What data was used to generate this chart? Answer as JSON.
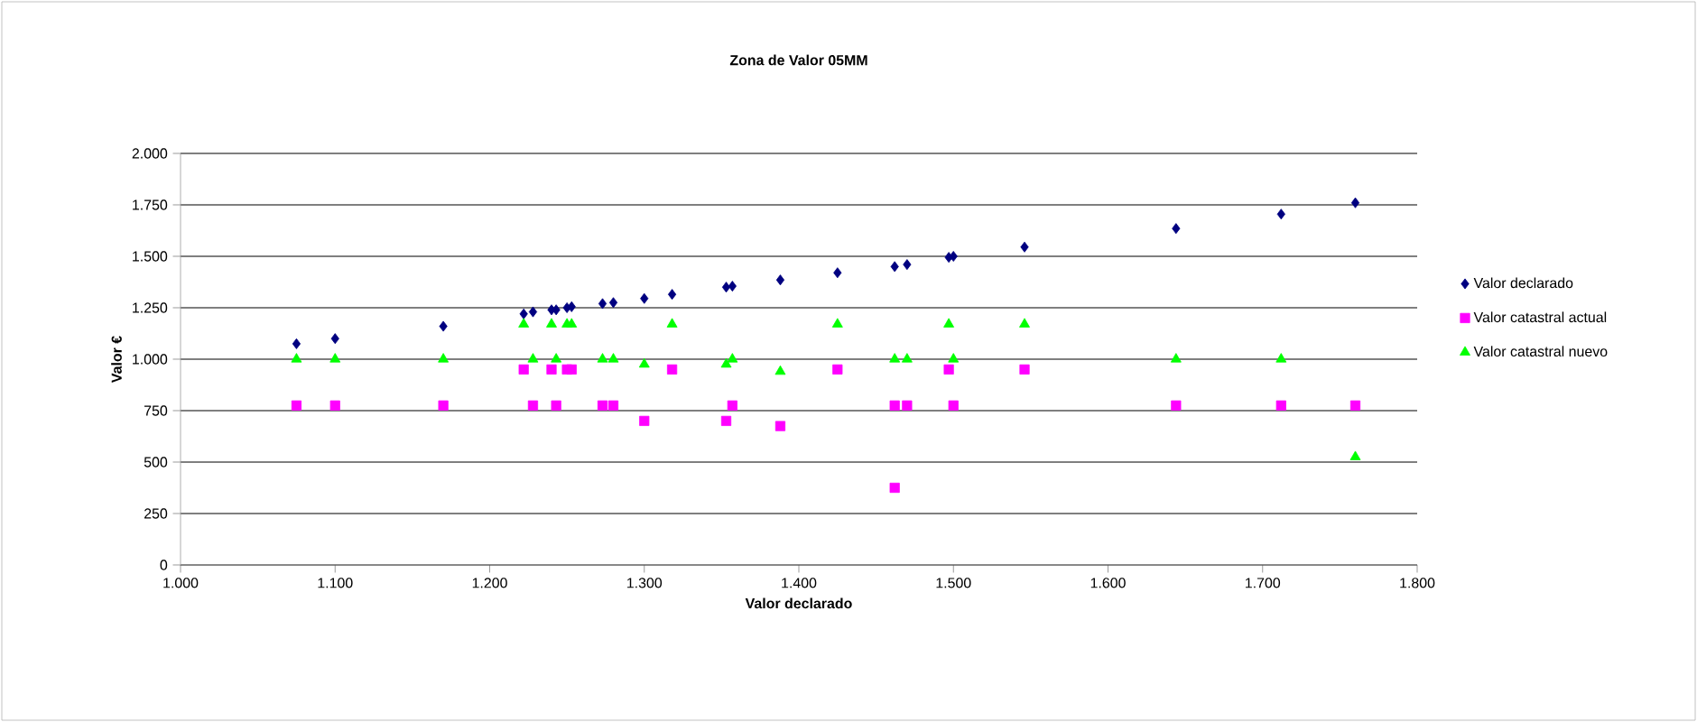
{
  "chart_data": {
    "type": "scatter",
    "title": "Zona de Valor 05MM",
    "xlabel": "Valor declarado",
    "ylabel": "Valor €",
    "xlim": [
      1000,
      1800
    ],
    "ylim": [
      0,
      2000
    ],
    "xticks": [
      {
        "value": 1000,
        "label": "1.000"
      },
      {
        "value": 1100,
        "label": "1.100"
      },
      {
        "value": 1200,
        "label": "1.200"
      },
      {
        "value": 1300,
        "label": "1.300"
      },
      {
        "value": 1400,
        "label": "1.400"
      },
      {
        "value": 1500,
        "label": "1.500"
      },
      {
        "value": 1600,
        "label": "1.600"
      },
      {
        "value": 1700,
        "label": "1.700"
      },
      {
        "value": 1800,
        "label": "1.800"
      }
    ],
    "yticks": [
      0,
      250,
      500,
      750,
      {
        "value": 1000,
        "label": "1.000"
      },
      {
        "value": 1250,
        "label": "1.250"
      },
      {
        "value": 1500,
        "label": "1.500"
      },
      {
        "value": 1750,
        "label": "1.750"
      },
      {
        "value": 2000,
        "label": "2.000"
      }
    ],
    "grid": "y",
    "legend": "right",
    "x": [
      1075,
      1100,
      1170,
      1222,
      1228,
      1240,
      1243,
      1250,
      1253,
      1273,
      1280,
      1300,
      1318,
      1353,
      1357,
      1388,
      1425,
      1462,
      1462,
      1470,
      1497,
      1500,
      1546,
      1644,
      1712,
      1760
    ],
    "series": [
      {
        "name": "Valor declarado",
        "color": "#000080",
        "marker": "diamond",
        "values": [
          1075,
          1100,
          1160,
          1220,
          1230,
          1240,
          1240,
          1250,
          1255,
          1270,
          1275,
          1295,
          1315,
          1350,
          1355,
          1385,
          1420,
          1450,
          null,
          1460,
          1495,
          1500,
          1545,
          1635,
          1705,
          1760
        ]
      },
      {
        "name": "Valor catastral actual",
        "color": "#ff00ff",
        "marker": "square",
        "values": [
          775,
          775,
          775,
          950,
          775,
          950,
          775,
          950,
          950,
          775,
          775,
          700,
          950,
          700,
          775,
          675,
          950,
          775,
          375,
          775,
          950,
          775,
          950,
          775,
          775,
          775
        ]
      },
      {
        "name": "Valor catastral nuevo",
        "color": "#00ff00",
        "marker": "triangle",
        "values": [
          1000,
          1000,
          1000,
          1170,
          1000,
          1170,
          1000,
          1170,
          1170,
          1000,
          1000,
          975,
          1170,
          975,
          1000,
          940,
          1170,
          1000,
          null,
          1000,
          1170,
          1000,
          1170,
          1000,
          1000,
          525
        ]
      }
    ]
  }
}
